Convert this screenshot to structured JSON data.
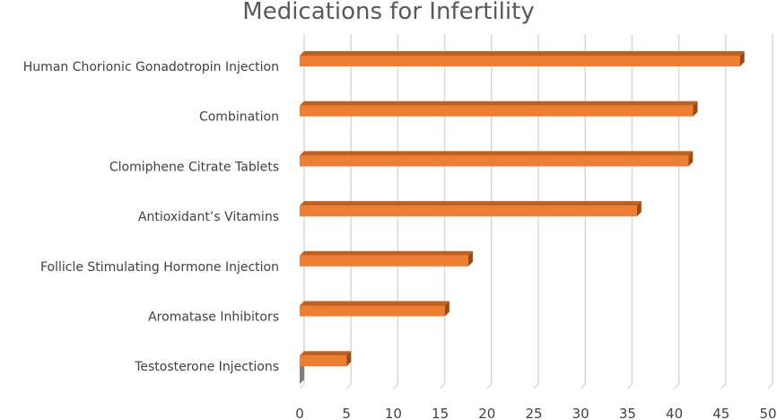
{
  "chart_data": {
    "type": "bar",
    "orientation": "horizontal",
    "title": "Medications for Infertility",
    "categories": [
      "Human Chorionic Gonadotropin Injection",
      "Combination",
      "Clomiphene Citrate Tablets",
      "Antioxidant’s Vitamins",
      "Follicle Stimulating Hormone Injection",
      "Aromatase Inhibitors",
      "Testosterone Injections"
    ],
    "series": [
      {
        "values": [
          47,
          42,
          41.5,
          36,
          18,
          15.5,
          5
        ],
        "color": "#ed7d31"
      }
    ],
    "xlim": [
      0,
      50
    ],
    "xticks": [
      0,
      5,
      10,
      15,
      20,
      25,
      30,
      35,
      40,
      45,
      50
    ],
    "grid": true,
    "style": "3d"
  }
}
